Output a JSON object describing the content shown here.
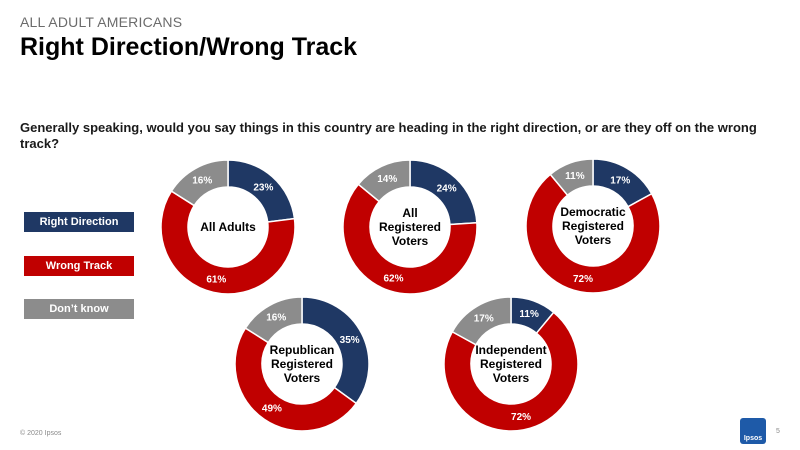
{
  "header": {
    "eyebrow": "ALL ADULT AMERICANS",
    "title": "Right Direction/Wrong Track",
    "question": "Generally speaking, would you say things in this country are heading in the right direction, or are they off on the wrong track?"
  },
  "legend": {
    "right_direction": "Right Direction",
    "wrong_track": "Wrong Track",
    "dont_know": "Don’t know"
  },
  "colors": {
    "right_direction": "#1f3864",
    "wrong_track": "#c00000",
    "dont_know": "#8c8c8c"
  },
  "footer": {
    "copyright": "© 2020 Ipsos",
    "logo": "Ipsos",
    "page_number": "5"
  },
  "chart_data": [
    {
      "type": "pie",
      "label": [
        "All Adults"
      ],
      "categories": [
        "Right Direction",
        "Wrong Track",
        "Don’t know"
      ],
      "values": [
        23,
        61,
        16
      ]
    },
    {
      "type": "pie",
      "label": [
        "All",
        "Registered",
        "Voters"
      ],
      "categories": [
        "Right Direction",
        "Wrong Track",
        "Don’t know"
      ],
      "values": [
        24,
        62,
        14
      ]
    },
    {
      "type": "pie",
      "label": [
        "Democratic",
        "Registered",
        "Voters"
      ],
      "categories": [
        "Right Direction",
        "Wrong Track",
        "Don’t know"
      ],
      "values": [
        17,
        72,
        11
      ]
    },
    {
      "type": "pie",
      "label": [
        "Republican",
        "Registered",
        "Voters"
      ],
      "categories": [
        "Right Direction",
        "Wrong Track",
        "Don’t know"
      ],
      "values": [
        35,
        49,
        16
      ]
    },
    {
      "type": "pie",
      "label": [
        "Independent",
        "Registered",
        "Voters"
      ],
      "categories": [
        "Right Direction",
        "Wrong Track",
        "Don’t know"
      ],
      "values": [
        11,
        72,
        17
      ]
    }
  ]
}
